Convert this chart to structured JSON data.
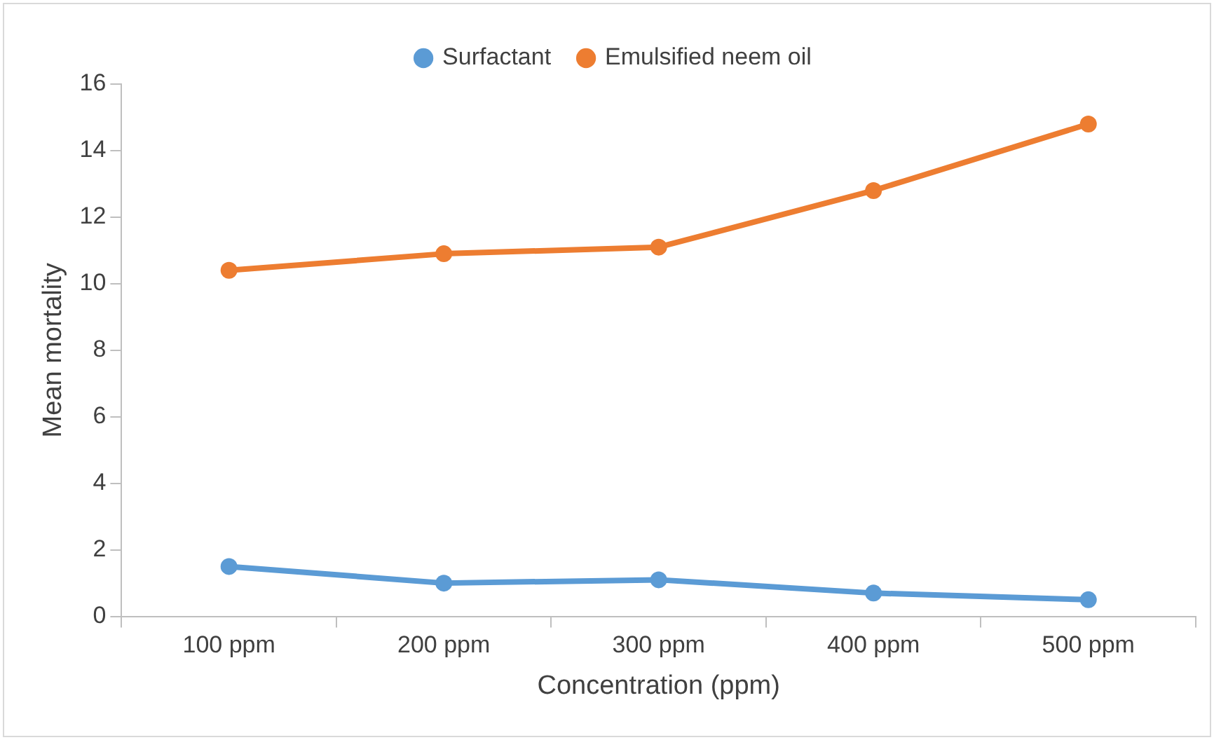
{
  "chart_data": {
    "type": "line",
    "xlabel": "Concentration (ppm)",
    "ylabel": "Mean mortality",
    "categories": [
      "100 ppm",
      "200 ppm",
      "300 ppm",
      "400 ppm",
      "500 ppm"
    ],
    "series": [
      {
        "name": "Surfactant",
        "color": "#5b9bd5",
        "values": [
          1.5,
          1.0,
          1.1,
          0.7,
          0.5
        ]
      },
      {
        "name": "Emulsified neem oil",
        "color": "#ed7d31",
        "values": [
          10.4,
          10.9,
          11.1,
          12.8,
          14.8
        ]
      }
    ],
    "ylim": [
      0,
      16
    ],
    "yticks": [
      0,
      2,
      4,
      6,
      8,
      10,
      12,
      14,
      16
    ],
    "legend": "top",
    "marker": "circle"
  }
}
